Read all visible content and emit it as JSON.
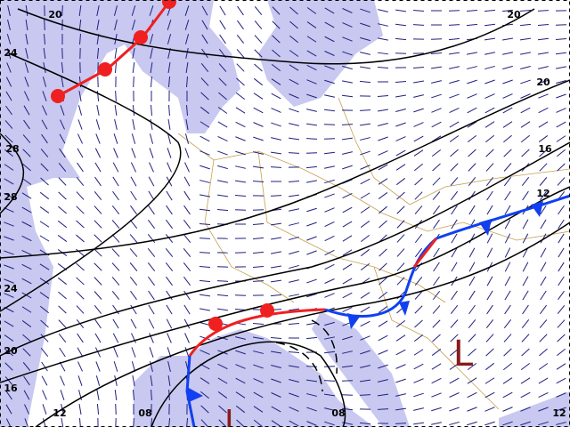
{
  "contour_labels": [
    "20",
    "20",
    "24",
    "20",
    "28",
    "16",
    "28",
    "12",
    "24",
    "20",
    "16",
    "12",
    "08",
    "08",
    "12"
  ],
  "pressure_centers": [
    "L",
    "L"
  ]
}
